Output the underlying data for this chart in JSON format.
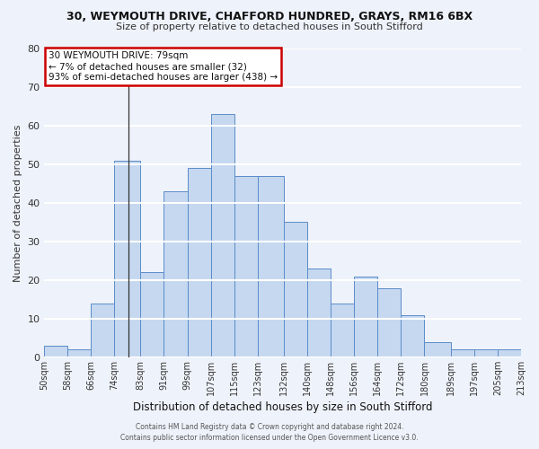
{
  "title1": "30, WEYMOUTH DRIVE, CHAFFORD HUNDRED, GRAYS, RM16 6BX",
  "title2": "Size of property relative to detached houses in South Stifford",
  "xlabel": "Distribution of detached houses by size in South Stifford",
  "ylabel": "Number of detached properties",
  "bin_labels": [
    "50sqm",
    "58sqm",
    "66sqm",
    "74sqm",
    "83sqm",
    "91sqm",
    "99sqm",
    "107sqm",
    "115sqm",
    "123sqm",
    "132sqm",
    "140sqm",
    "148sqm",
    "156sqm",
    "164sqm",
    "172sqm",
    "180sqm",
    "189sqm",
    "197sqm",
    "205sqm",
    "213sqm"
  ],
  "bin_edges": [
    50,
    58,
    66,
    74,
    83,
    91,
    99,
    107,
    115,
    123,
    132,
    140,
    148,
    156,
    164,
    172,
    180,
    189,
    197,
    205,
    213
  ],
  "counts": [
    3,
    2,
    14,
    51,
    22,
    43,
    49,
    63,
    47,
    47,
    35,
    23,
    14,
    21,
    18,
    11,
    4,
    2,
    2,
    2
  ],
  "bar_color": "#c5d8f0",
  "bar_edge_color": "#5b8cc8",
  "bg_color": "#eef2fa",
  "grid_color": "#ffffff",
  "annotation_line1": "30 WEYMOUTH DRIVE: 79sqm",
  "annotation_line2": "← 7% of detached houses are smaller (32)",
  "annotation_line3": "93% of semi-detached houses are larger (438) →",
  "annotation_box_color": "#ffffff",
  "annotation_border_color": "#cc0000",
  "vline_x": 79,
  "ylim": [
    0,
    80
  ],
  "yticks": [
    0,
    10,
    20,
    30,
    40,
    50,
    60,
    70,
    80
  ],
  "footer1": "Contains HM Land Registry data © Crown copyright and database right 2024.",
  "footer2": "Contains public sector information licensed under the Open Government Licence v3.0."
}
